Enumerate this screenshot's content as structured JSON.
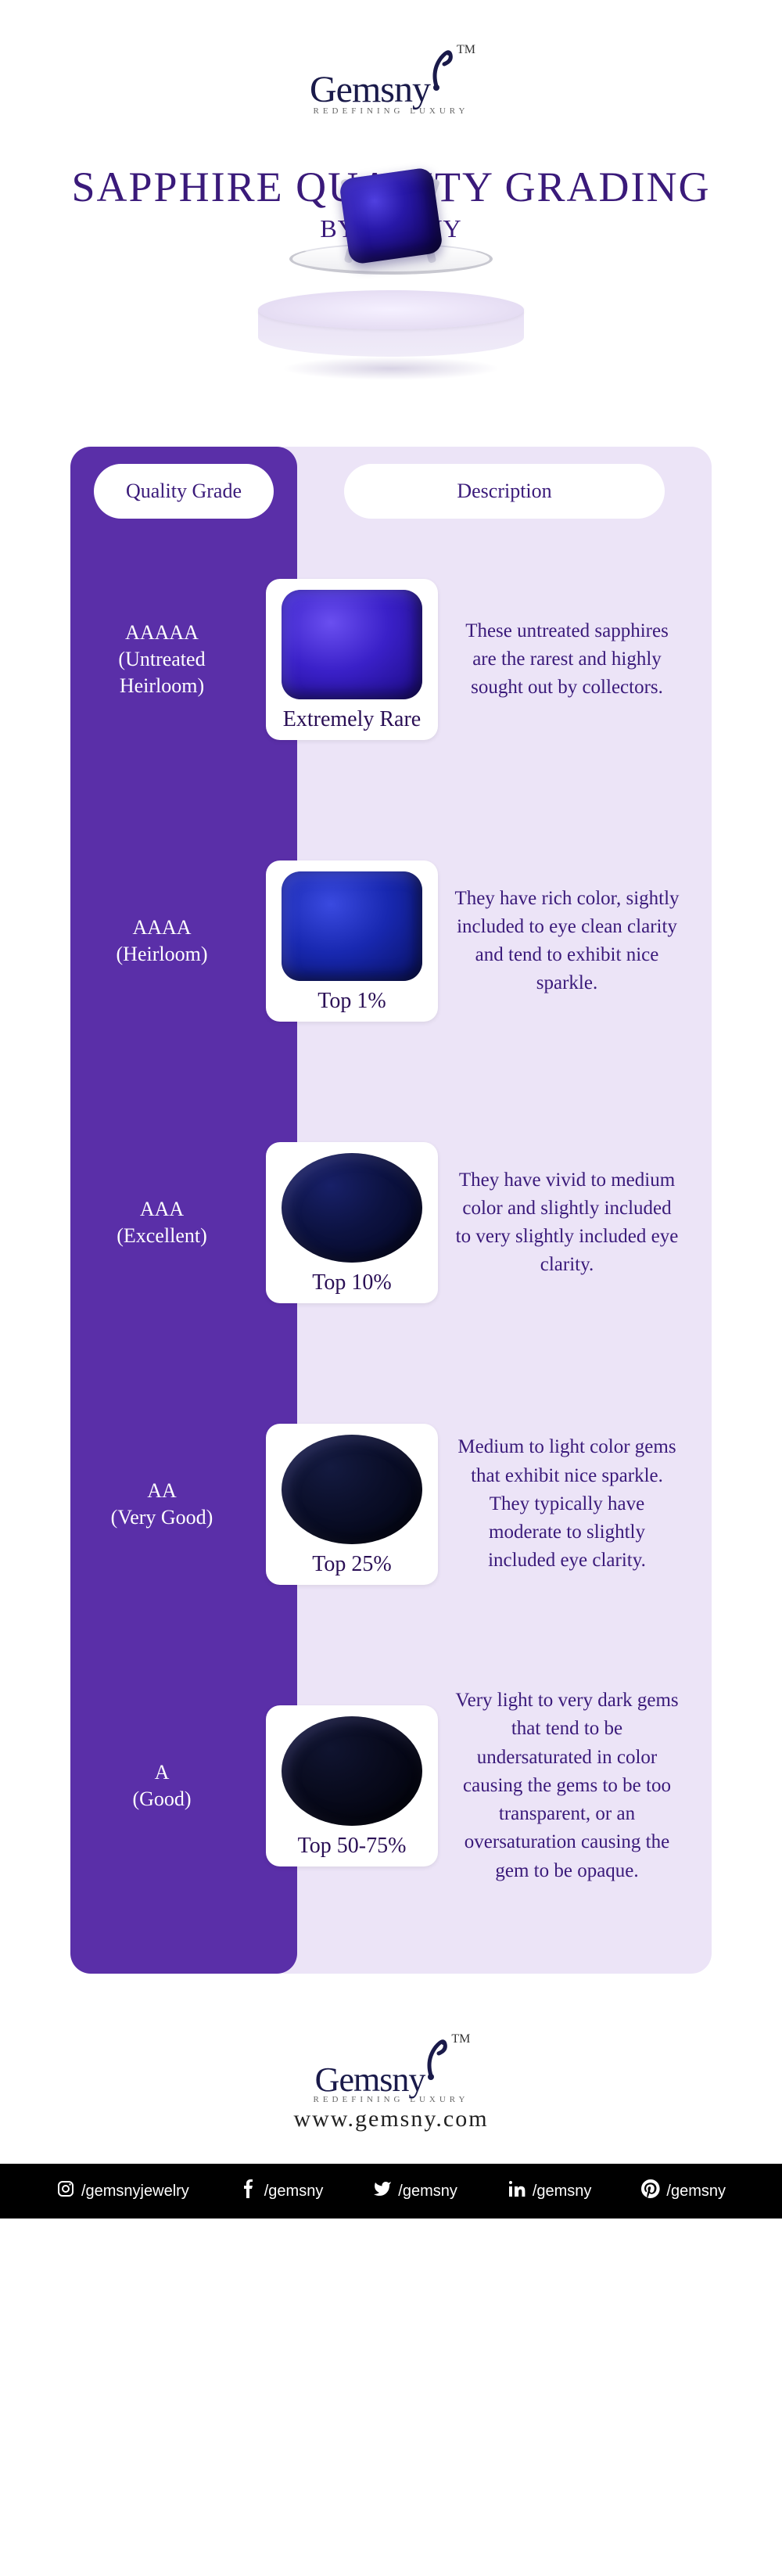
{
  "brand": {
    "name": "Gemsny",
    "tagline": "REDEFINING LUXURY",
    "tm": "TM",
    "accent_color": "#1a1a4a",
    "url": "www.gemsny.com"
  },
  "title": {
    "main": "SAPPHIRE QUALITY GRADING",
    "sub": "BY GemsNY",
    "color": "#3a1a7a",
    "main_fontsize": 54,
    "sub_fontsize": 32
  },
  "columns": {
    "left_header": "Quality Grade",
    "right_header": "Description",
    "left_bg": "#5a2fa8",
    "right_bg": "#ece4f7",
    "pill_bg": "#ffffff",
    "header_color": "#3a1a7a"
  },
  "hero": {
    "gem_color": "#2818a8",
    "pedestal_color": "#e8e0f5"
  },
  "grades": [
    {
      "code": "AAAAA",
      "label": "(Untreated Heirloom)",
      "caption": "Extremely Rare",
      "description": "These untreated sapphires are the rarest and highly sought out by collectors.",
      "gem_shape": "cushion",
      "gem_gradient": [
        "#6a4ff0",
        "#3a20c8",
        "#1a0a80"
      ]
    },
    {
      "code": "AAAA",
      "label": "(Heirloom)",
      "caption": "Top 1%",
      "description": "They have rich color, sightly included to eye clean clarity and tend to exhibit nice sparkle.",
      "gem_shape": "cushion",
      "gem_gradient": [
        "#3a4ae0",
        "#1828b0",
        "#081060"
      ]
    },
    {
      "code": "AAA",
      "label": "(Excellent)",
      "caption": "Top 10%",
      "description": "They have vivid to medium color and slightly included to very slightly included eye clarity.",
      "gem_shape": "oval",
      "gem_gradient": [
        "#182068",
        "#0c1240",
        "#040620"
      ]
    },
    {
      "code": "AA",
      "label": "(Very Good)",
      "caption": "Top 25%",
      "description": "Medium to light color gems that exhibit nice sparkle. They typically have moderate to slightly included eye clarity.",
      "gem_shape": "oval",
      "gem_gradient": [
        "#141a40",
        "#0a0e28",
        "#020410"
      ]
    },
    {
      "code": "A",
      "label": "(Good)",
      "caption": "Top 50-75%",
      "description": "Very light to very dark gems that tend to be undersaturated in color causing the gems to be too transparent, or an oversaturation causing the gem to be opaque.",
      "gem_shape": "oval",
      "gem_gradient": [
        "#101430",
        "#080a1c",
        "#010208"
      ]
    }
  ],
  "social": [
    {
      "icon": "instagram",
      "handle": "/gemsnyjewelry"
    },
    {
      "icon": "facebook",
      "handle": "/gemsny"
    },
    {
      "icon": "twitter",
      "handle": "/gemsny"
    },
    {
      "icon": "linkedin",
      "handle": "/gemsny"
    },
    {
      "icon": "pinterest",
      "handle": "/gemsny"
    }
  ]
}
